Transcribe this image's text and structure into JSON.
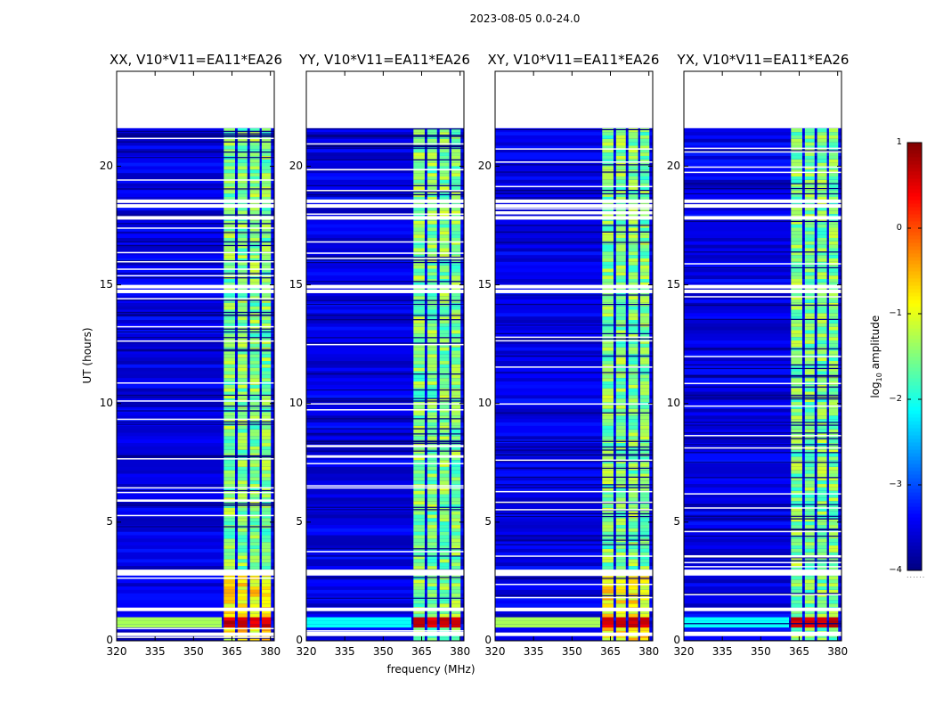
{
  "suptitle": "2023-08-05 0.0-24.0",
  "chart_data": {
    "type": "heatmap",
    "title": "2023-08-05 0.0-24.0",
    "xlabel": "frequency (MHz)",
    "ylabel": "UT (hours)",
    "xlim": [
      320,
      381.5
    ],
    "ylim": [
      0,
      24
    ],
    "xticks": [
      320,
      335,
      350,
      365,
      380
    ],
    "yticks": [
      0,
      5,
      10,
      15,
      20
    ],
    "data_extent_hours": [
      0,
      21.6
    ],
    "colorbar": {
      "label": "log10 amplitude",
      "label_main": "log",
      "label_sub": "10",
      "label_rest": " amplitude",
      "range": [
        -4,
        1
      ],
      "ticks": [
        1,
        0,
        -1,
        -2,
        -3,
        -4
      ],
      "tick_labels": [
        "1",
        "0",
        "−1",
        "−2",
        "−3",
        "−4"
      ],
      "colormap": "jet"
    },
    "panels": [
      {
        "title": "XX, V10*V11=EA11*EA26"
      },
      {
        "title": "YY, V10*V11=EA11*EA26"
      },
      {
        "title": "XY, V10*V11=EA11*EA26"
      },
      {
        "title": "YX, V10*V11=EA11*EA26"
      }
    ],
    "bright_band_mhz": [
      361.8,
      380.2
    ],
    "bright_band_columns_mhz": [
      [
        361.8,
        366.2
      ],
      [
        367.2,
        371.0
      ],
      [
        372.0,
        375.8
      ],
      [
        376.6,
        380.2
      ]
    ],
    "flagged_gaps_hours": [
      18.6,
      18.4,
      17.9,
      15.0,
      14.8,
      3.0,
      2.9,
      1.4,
      0.35
    ],
    "typical_background_log10": -3.5,
    "typical_band_log10": -1.5,
    "rfi_strong_hours": [
      0.5,
      1.1
    ],
    "rfi_strong_log10": 0.8
  }
}
